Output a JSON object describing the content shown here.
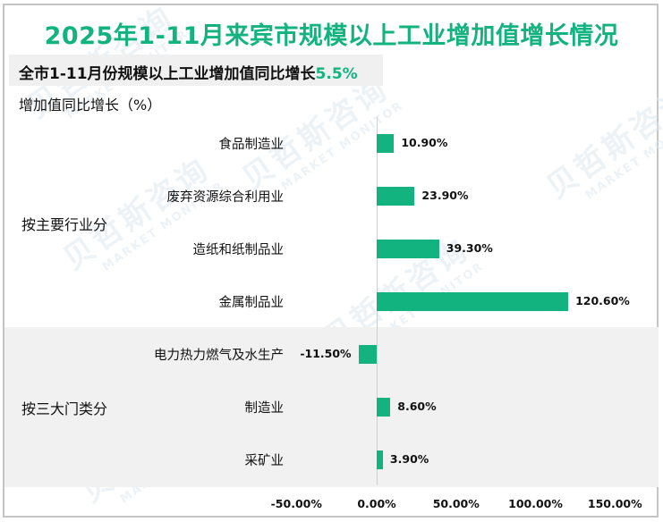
{
  "title": "2025年1-11月来宾市规模以上工业增加值增长情况",
  "subtitle": {
    "prefix": "全市1-11月份规模以上工业增加值同比增长",
    "highlight": "5.5%"
  },
  "y_axis_title": "增加值同比增长（%）",
  "watermark": {
    "cn": "贝哲斯咨询",
    "en": "MARKET MONITOR"
  },
  "colors": {
    "accent": "#13b37f",
    "bar": "#13b37f",
    "band": "#f1f1f1",
    "border": "#c4c4c4"
  },
  "groups": [
    {
      "label": "按主要行业分",
      "shaded": false,
      "start": 0,
      "end": 3
    },
    {
      "label": "按三大门类分",
      "shaded": true,
      "start": 4,
      "end": 6
    }
  ],
  "chart_data": {
    "type": "bar",
    "orientation": "horizontal",
    "title": "2025年1-11月来宾市规模以上工业增加值增长情况",
    "subtitle": "全市1-11月份规模以上工业增加值同比增长5.5%",
    "xlabel": "",
    "ylabel": "增加值同比增长（%）",
    "categories": [
      "食品制造业",
      "废弃资源综合利用业",
      "造纸和纸制品业",
      "金属制品业",
      "电力热力燃气及水生产",
      "制造业",
      "采矿业"
    ],
    "group_of_category": [
      "按主要行业分",
      "按主要行业分",
      "按主要行业分",
      "按主要行业分",
      "按三大门类分",
      "按三大门类分",
      "按三大门类分"
    ],
    "values": [
      10.9,
      23.9,
      39.3,
      120.6,
      -11.5,
      8.6,
      3.9
    ],
    "value_labels": [
      "10.90%",
      "23.90%",
      "39.30%",
      "120.60%",
      "-11.50%",
      "8.60%",
      "3.90%"
    ],
    "xlim": [
      -50,
      150
    ],
    "xticks": [
      "-50.00%",
      "0.00%",
      "50.00%",
      "100.00%",
      "150.00%"
    ],
    "xtick_values": [
      -50,
      0,
      50,
      100,
      150
    ],
    "grid": false,
    "legend": null
  }
}
